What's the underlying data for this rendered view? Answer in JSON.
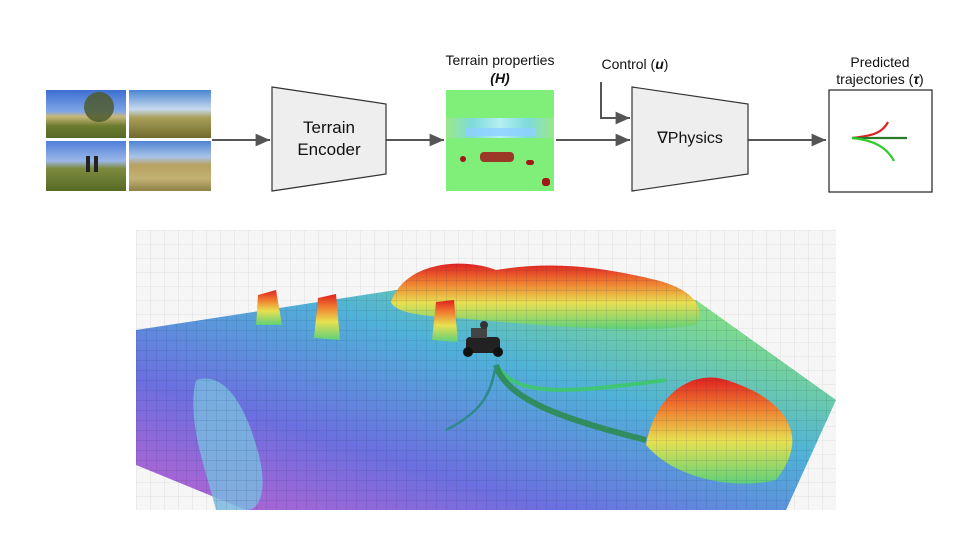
{
  "diagram": {
    "encoder": {
      "line1": "Terrain",
      "line2": "Encoder"
    },
    "terrain_properties": {
      "title": "Terrain properties",
      "symbol": "(H)"
    },
    "control": {
      "label": "Control (",
      "symbol": "u",
      "close": ")"
    },
    "physics": {
      "symbol": "∇",
      "label": "Physics"
    },
    "predicted": {
      "line1": "Predicted",
      "line2": "trajectories (",
      "symbol": "τ",
      "close": ")"
    }
  },
  "colors": {
    "block_fill": "#eeeeee",
    "block_stroke": "#333333",
    "arrow": "#555555",
    "heightmap_base": "#7fef7a",
    "traj_red": "#e02020",
    "traj_green": "#2ecc2e",
    "traj_dark": "#2a7a2a"
  },
  "images": [
    {
      "name": "camera-image-front"
    },
    {
      "name": "camera-image-field"
    },
    {
      "name": "camera-image-people"
    },
    {
      "name": "camera-image-grass"
    }
  ]
}
